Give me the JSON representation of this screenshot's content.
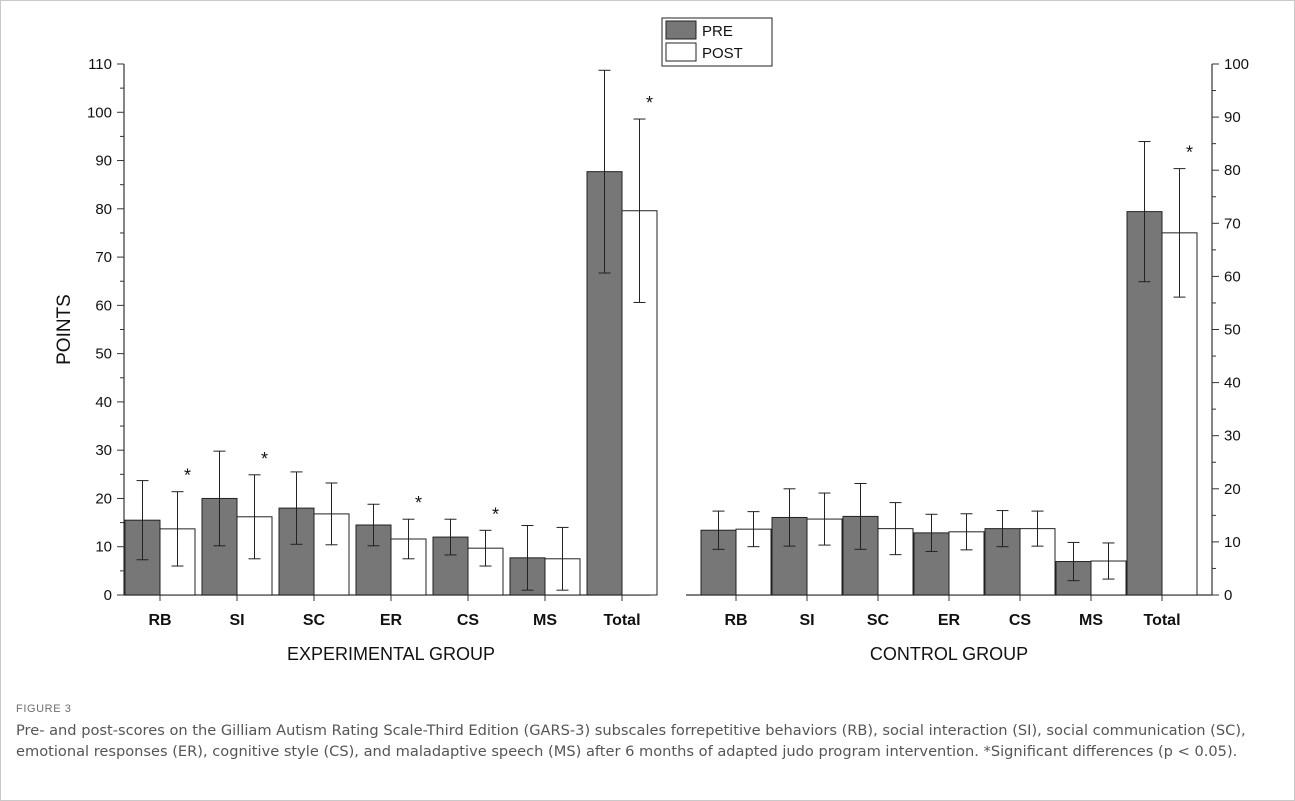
{
  "caption": {
    "label": "FIGURE 3",
    "text": "Pre- and post-scores on the Gilliam Autism Rating Scale-Third Edition (GARS-3) subscales forrepetitive behaviors (RB), social interaction (SI), social communication (SC), emotional responses (ER), cognitive style (CS), and maladaptive speech (MS) after 6 months of adapted judo program intervention. *Significant differences (p < 0.05)."
  },
  "chart_data": {
    "type": "bar",
    "ylabel": "POINTS",
    "left_axis": {
      "ylim": [
        0,
        110
      ],
      "ticks": [
        0,
        10,
        20,
        30,
        40,
        50,
        60,
        70,
        80,
        90,
        100,
        110
      ]
    },
    "right_axis": {
      "ylim": [
        0,
        100
      ],
      "ticks": [
        0,
        10,
        20,
        30,
        40,
        50,
        60,
        70,
        80,
        90,
        100
      ]
    },
    "legend": {
      "placement": "top-center",
      "entries": [
        {
          "name": "PRE",
          "color": "#777777"
        },
        {
          "name": "POST",
          "color": "#ffffff"
        }
      ]
    },
    "significance_marker": "*",
    "groups": [
      {
        "label": "EXPERIMENTAL GROUP",
        "axis": "left",
        "categories": [
          "RB",
          "SI",
          "SC",
          "ER",
          "CS",
          "MS",
          "Total"
        ],
        "series": [
          {
            "name": "PRE",
            "values": [
              15.5,
              20,
              18,
              14.5,
              12,
              7.7,
              87.7
            ],
            "errors": [
              8.2,
              9.8,
              7.5,
              4.3,
              3.7,
              6.7,
              21
            ]
          },
          {
            "name": "POST",
            "values": [
              13.7,
              16.2,
              16.8,
              11.6,
              9.7,
              7.5,
              79.6
            ],
            "errors": [
              7.7,
              8.7,
              6.4,
              4.1,
              3.7,
              6.5,
              19
            ]
          }
        ],
        "significant": [
          true,
          true,
          false,
          true,
          true,
          false,
          true
        ]
      },
      {
        "label": "CONTROL GROUP",
        "axis": "right",
        "categories": [
          "RB",
          "SI",
          "SC",
          "ER",
          "CS",
          "MS",
          "Total"
        ],
        "series": [
          {
            "name": "PRE",
            "values": [
              12.2,
              14.6,
              14.8,
              11.7,
              12.5,
              6.3,
              72.2
            ],
            "errors": [
              3.6,
              5.4,
              6.2,
              3.5,
              3.4,
              3.6,
              13.2
            ]
          },
          {
            "name": "POST",
            "values": [
              12.4,
              14.3,
              12.5,
              11.9,
              12.5,
              6.4,
              68.2
            ],
            "errors": [
              3.3,
              4.9,
              4.9,
              3.4,
              3.3,
              3.4,
              12.1
            ]
          }
        ],
        "significant": [
          false,
          false,
          false,
          false,
          false,
          false,
          true
        ]
      }
    ]
  }
}
